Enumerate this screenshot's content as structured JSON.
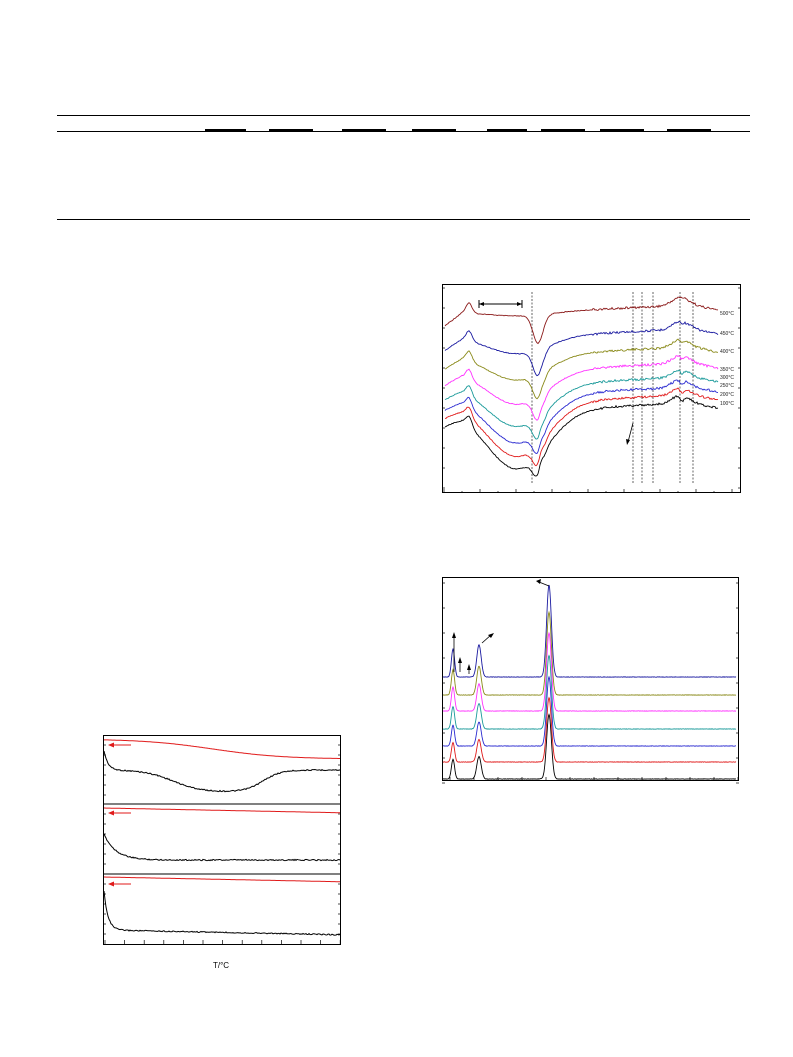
{
  "figures": {
    "ftir": {
      "temperature_labels": [
        "500°C",
        "450°C",
        "400°C",
        "350°C",
        "300°C",
        "250°C",
        "200°C",
        "100°C"
      ],
      "colors": [
        "#8b1a1a",
        "#1a1aa0",
        "#8a8a1a",
        "#ff33ff",
        "#1a9a9a",
        "#2a2ad0",
        "#e01a1a",
        "#000000"
      ]
    },
    "xrd": {
      "colors": [
        "#1a1aa0",
        "#8a8a1a",
        "#ff33ff",
        "#1a9a9a",
        "#2a2ad0",
        "#e01a1a",
        "#000000"
      ]
    },
    "tga": {
      "x_label": "T/°C",
      "colors": {
        "tg": "#e01a1a",
        "dtg": "#000000"
      }
    }
  }
}
